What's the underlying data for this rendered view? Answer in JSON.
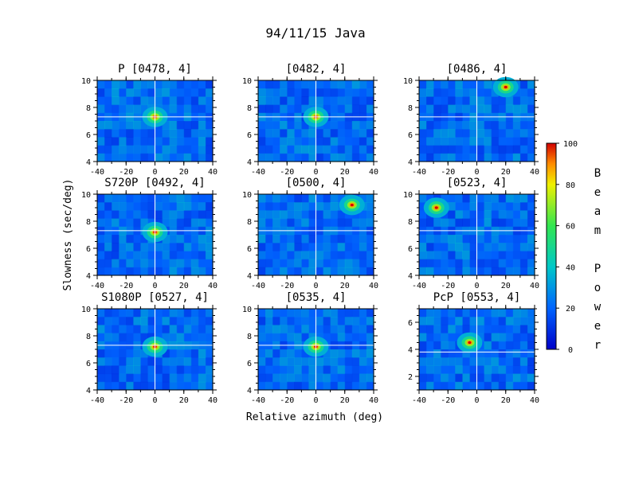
{
  "figure_title": "94/11/15 Java",
  "xlabel": "Relative azimuth (deg)",
  "ylabel": "Slowness (sec/deg)",
  "colorbar": {
    "label_letters": [
      "B",
      "e",
      "a",
      "m",
      "",
      "P",
      "o",
      "w",
      "e",
      "r"
    ],
    "ticks": [
      "0",
      "20",
      "40",
      "60",
      "80",
      "100"
    ],
    "range": [
      0,
      100
    ]
  },
  "chart_data": [
    {
      "type": "heatmap",
      "title": "P [0478, 4]",
      "xlim": [
        -40,
        40
      ],
      "ylim": [
        4,
        10
      ],
      "xticks": [
        "-40",
        "-20",
        "0",
        "20",
        "40"
      ],
      "yticks": [
        "4",
        "6",
        "8",
        "10"
      ],
      "crosshair": {
        "x": 0,
        "y": 7.3
      },
      "peak": {
        "x": 0,
        "y": 7.3,
        "value": 100
      }
    },
    {
      "type": "heatmap",
      "title": "[0482, 4]",
      "xlim": [
        -40,
        40
      ],
      "ylim": [
        4,
        10
      ],
      "xticks": [
        "-40",
        "-20",
        "0",
        "20",
        "40"
      ],
      "yticks": [
        "4",
        "6",
        "8",
        "10"
      ],
      "crosshair": {
        "x": 0,
        "y": 7.3
      },
      "peak": {
        "x": 0,
        "y": 7.3,
        "value": 100
      }
    },
    {
      "type": "heatmap",
      "title": "[0486, 4]",
      "xlim": [
        -40,
        40
      ],
      "ylim": [
        4,
        10
      ],
      "xticks": [
        "-40",
        "-20",
        "0",
        "20",
        "40"
      ],
      "yticks": [
        "4",
        "6",
        "8",
        "10"
      ],
      "crosshair": {
        "x": 0,
        "y": 7.3
      },
      "peak": {
        "x": 20,
        "y": 9.5,
        "value": 100
      }
    },
    {
      "type": "heatmap",
      "title": "S720P [0492, 4]",
      "xlim": [
        -40,
        40
      ],
      "ylim": [
        4,
        10
      ],
      "xticks": [
        "-40",
        "-20",
        "0",
        "20",
        "40"
      ],
      "yticks": [
        "4",
        "6",
        "8",
        "10"
      ],
      "crosshair": {
        "x": 0,
        "y": 7.3
      },
      "peak": {
        "x": 0,
        "y": 7.2,
        "value": 100
      }
    },
    {
      "type": "heatmap",
      "title": "[0500, 4]",
      "xlim": [
        -40,
        40
      ],
      "ylim": [
        4,
        10
      ],
      "xticks": [
        "-40",
        "-20",
        "0",
        "20",
        "40"
      ],
      "yticks": [
        "4",
        "6",
        "8",
        "10"
      ],
      "crosshair": {
        "x": 0,
        "y": 7.3
      },
      "peak": {
        "x": 25,
        "y": 9.2,
        "value": 100
      }
    },
    {
      "type": "heatmap",
      "title": "[0523, 4]",
      "xlim": [
        -40,
        40
      ],
      "ylim": [
        4,
        10
      ],
      "xticks": [
        "-40",
        "-20",
        "0",
        "20",
        "40"
      ],
      "yticks": [
        "4",
        "6",
        "8",
        "10"
      ],
      "crosshair": {
        "x": 0,
        "y": 7.3
      },
      "peak": {
        "x": -28,
        "y": 9.0,
        "value": 100
      }
    },
    {
      "type": "heatmap",
      "title": "S1080P [0527, 4]",
      "xlim": [
        -40,
        40
      ],
      "ylim": [
        4,
        10
      ],
      "xticks": [
        "-40",
        "-20",
        "0",
        "20",
        "40"
      ],
      "yticks": [
        "4",
        "6",
        "8",
        "10"
      ],
      "crosshair": {
        "x": 0,
        "y": 7.3
      },
      "peak": {
        "x": 0,
        "y": 7.2,
        "value": 100
      }
    },
    {
      "type": "heatmap",
      "title": "[0535, 4]",
      "xlim": [
        -40,
        40
      ],
      "ylim": [
        4,
        10
      ],
      "xticks": [
        "-40",
        "-20",
        "0",
        "20",
        "40"
      ],
      "yticks": [
        "4",
        "6",
        "8",
        "10"
      ],
      "crosshair": {
        "x": 0,
        "y": 7.3
      },
      "peak": {
        "x": 0,
        "y": 7.2,
        "value": 100
      }
    },
    {
      "type": "heatmap",
      "title": "PcP [0553, 4]",
      "xlim": [
        -40,
        40
      ],
      "ylim": [
        1,
        7
      ],
      "xticks": [
        "-40",
        "-20",
        "0",
        "20",
        "40"
      ],
      "yticks": [
        "2",
        "4",
        "6"
      ],
      "crosshair": {
        "x": 0,
        "y": 3.8
      },
      "peak": {
        "x": -5,
        "y": 4.5,
        "value": 100
      }
    }
  ]
}
